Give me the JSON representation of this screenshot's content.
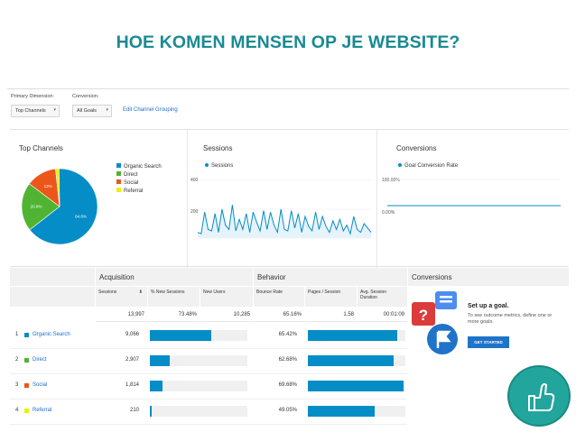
{
  "slide_title": "HOE KOMEN MENSEN OP JE WEBSITE?",
  "controls": {
    "primary_dimension_label": "Primary Dimension:",
    "primary_dimension_value": "Top Channels",
    "conversion_label": "Conversion:",
    "conversion_value": "All Goals",
    "edit_link": "Edit Channel Grouping"
  },
  "top_channels": {
    "title": "Top Channels",
    "legend": [
      "Organic Search",
      "Direct",
      "Social",
      "Referral"
    ],
    "slices": [
      {
        "name": "Organic Search",
        "percent": 64.8,
        "label": "64.8%",
        "color": "#058dc7"
      },
      {
        "name": "Direct",
        "percent": 20.8,
        "label": "20.8%",
        "color": "#50b432"
      },
      {
        "name": "Social",
        "percent": 13.0,
        "label": "13%",
        "color": "#ed561b"
      },
      {
        "name": "Referral",
        "percent": 1.5,
        "label": "",
        "color": "#edef00"
      }
    ]
  },
  "sessions_chart": {
    "title": "Sessions",
    "legend": "Sessions",
    "y_ticks": [
      "400",
      "200"
    ],
    "values": [
      40,
      30,
      180,
      60,
      50,
      170,
      40,
      200,
      90,
      60,
      230,
      50,
      130,
      60,
      170,
      40,
      180,
      110,
      50,
      190,
      60,
      180,
      90,
      40,
      200,
      60,
      50,
      190,
      70,
      170,
      40,
      150,
      80,
      50,
      180,
      60,
      150,
      80,
      40,
      120,
      60,
      130,
      50,
      90,
      30,
      150,
      60,
      40,
      100,
      70,
      40
    ]
  },
  "conversions_chart": {
    "title": "Conversions",
    "legend": "Goal Conversion Rate",
    "y_ticks": [
      "100.00%",
      "0.00%"
    ]
  },
  "table": {
    "groups": [
      "Acquisition",
      "Behavior",
      "Conversions"
    ],
    "columns": [
      "Sessions",
      "% New Sessions",
      "New Users",
      "Bounce Rate",
      "Pages / Session",
      "Avg. Session Duration"
    ],
    "totals": [
      "13,997",
      "73.48%",
      "10,285",
      "65.16%",
      "1.58",
      "00:01:09"
    ],
    "rows": [
      {
        "num": "1",
        "channel": "Organic Search",
        "color": "#058dc7",
        "sessions": "9,066",
        "sessions_share": 0.648,
        "bounce": "65.42%",
        "bounce_share": 0.6542
      },
      {
        "num": "2",
        "channel": "Direct",
        "color": "#50b432",
        "sessions": "2,907",
        "sessions_share": 0.208,
        "bounce": "62.68%",
        "bounce_share": 0.6268
      },
      {
        "num": "3",
        "channel": "Social",
        "color": "#ed561b",
        "sessions": "1,814",
        "sessions_share": 0.13,
        "bounce": "69.68%",
        "bounce_share": 0.6968
      },
      {
        "num": "4",
        "channel": "Referral",
        "color": "#edef00",
        "sessions": "210",
        "sessions_share": 0.015,
        "bounce": "49.05%",
        "bounce_share": 0.4905
      }
    ]
  },
  "goal_promo": {
    "title": "Set up a goal.",
    "description": "To see outcome metrics, define one or more goals.",
    "button": "GET STARTED"
  },
  "colors": {
    "accent": "#1a8a93",
    "ga_blue": "#058dc7",
    "badge": "#22a59c"
  }
}
